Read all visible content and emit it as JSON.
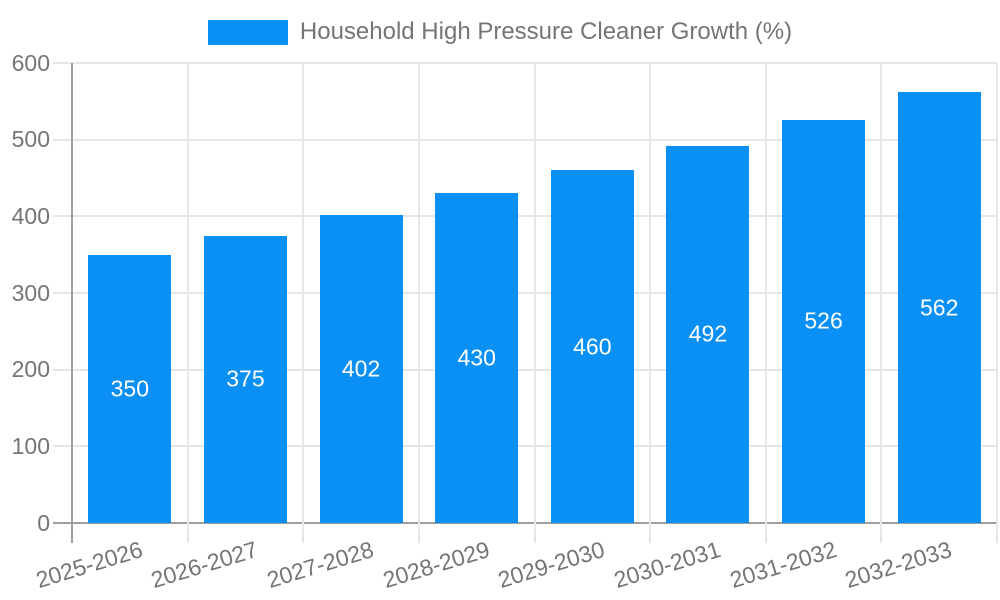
{
  "legend": {
    "label": "Household High Pressure Cleaner Growth (%)"
  },
  "colors": {
    "bar": "#0a90f5",
    "grid": "#e6e6e6",
    "axis": "#9e9e9e",
    "text": "#757575",
    "value_label": "#ffffff",
    "background": "#ffffff"
  },
  "chart_data": {
    "type": "bar",
    "title": "",
    "xlabel": "",
    "ylabel": "",
    "categories": [
      "2025-2026",
      "2026-2027",
      "2027-2028",
      "2028-2029",
      "2029-2030",
      "2030-2031",
      "2031-2032",
      "2032-2033"
    ],
    "values": [
      350,
      375,
      402,
      430,
      460,
      492,
      526,
      562
    ],
    "series_name": "Household High Pressure Cleaner Growth (%)",
    "ylim": [
      0,
      600
    ],
    "yticks": [
      0,
      100,
      200,
      300,
      400,
      500,
      600
    ],
    "grid": true,
    "bar_labels_shown": true,
    "legend_position": "top-center",
    "x_tick_rotation_deg": -17
  }
}
